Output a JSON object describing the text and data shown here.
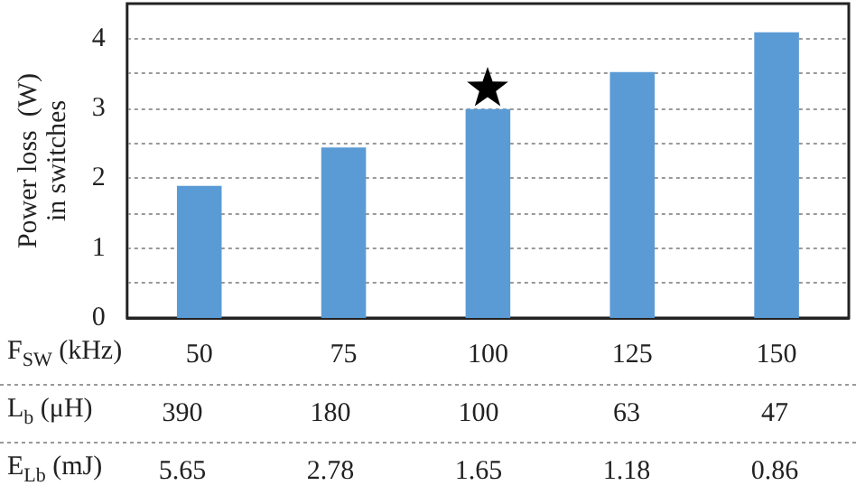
{
  "chart_data": {
    "type": "bar",
    "ylabel": "Power loss  (W)\nin switches",
    "xlabel": "F$_{SW}$ (kHz)",
    "categories": [
      "50",
      "75",
      "100",
      "125",
      "150"
    ],
    "values": [
      1.89,
      2.44,
      2.99,
      3.52,
      4.09
    ],
    "color": "#5b9bd5",
    "ylim": [
      0,
      4.5
    ],
    "yticks": [
      0,
      {
        "value": 0.5,
        "label": null
      },
      1,
      {
        "value": 1.5,
        "label": null
      },
      2,
      {
        "value": 2.5,
        "label": null
      },
      3,
      {
        "value": 3.5,
        "label": null
      },
      4
    ],
    "grid": "y",
    "annotations": [
      "L$_{b}$ (μH)",
      "390",
      "180",
      "100",
      "63",
      "47",
      "E$_{Lb}$ (mJ)",
      "5.65",
      "2.78",
      "1.65",
      "1.18",
      "0.86"
    ]
  }
}
